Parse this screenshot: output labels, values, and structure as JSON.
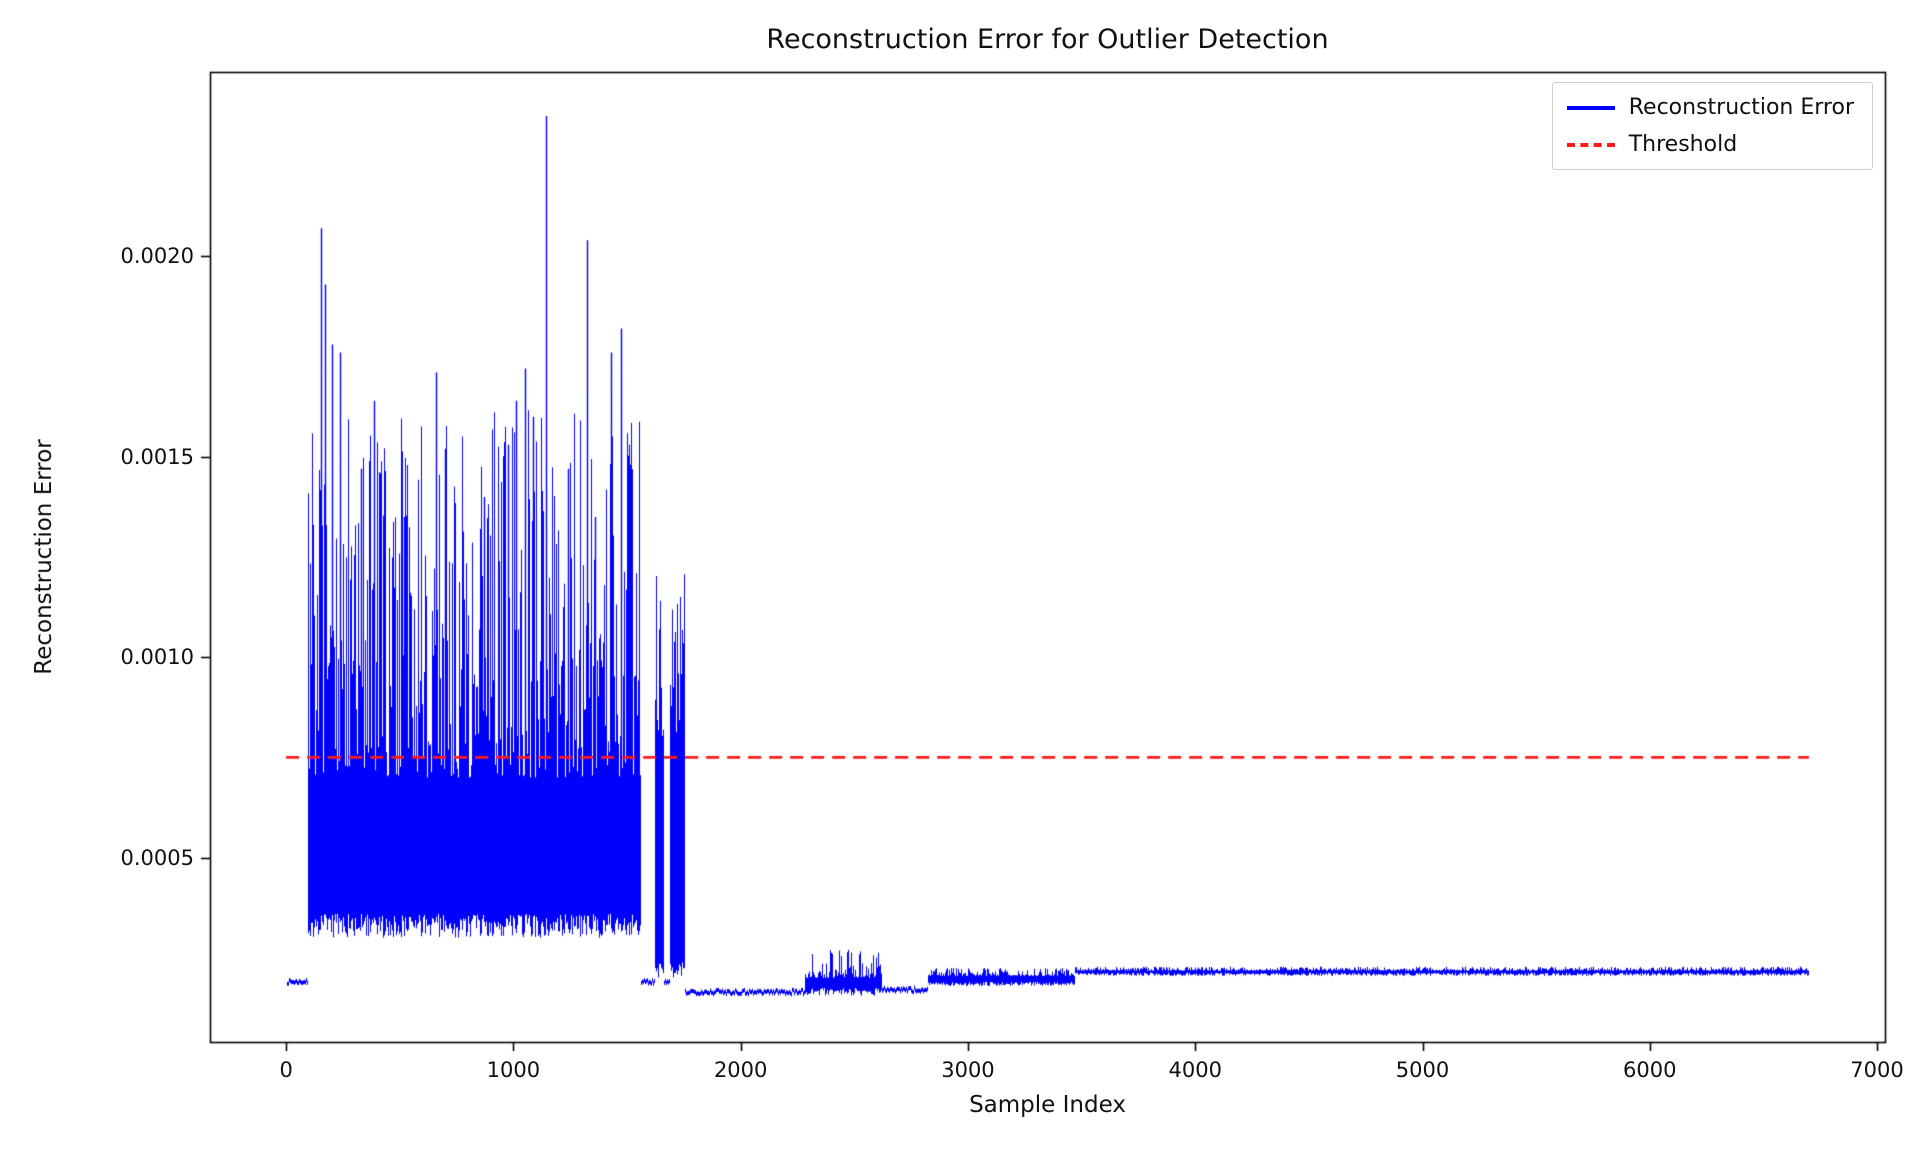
{
  "figure": {
    "title": "Reconstruction Error for Outlier Detection",
    "xlabel": "Sample Index",
    "ylabel": "Reconstruction Error"
  },
  "legend": {
    "position": "upper right",
    "entries": [
      {
        "label": "Reconstruction Error",
        "color": "#0000ff",
        "style": "solid"
      },
      {
        "label": "Threshold",
        "color": "#ff1a1a",
        "style": "dashed"
      }
    ]
  },
  "chart_data": {
    "type": "line",
    "title": "Reconstruction Error for Outlier Detection",
    "xlabel": "Sample Index",
    "ylabel": "Reconstruction Error",
    "grid": false,
    "legend_position": "upper right",
    "xlim": [
      -335,
      7035
    ],
    "ylim": [
      4e-05,
      0.00246
    ],
    "x_ticks": [
      {
        "value": 0,
        "label": "0"
      },
      {
        "value": 1000,
        "label": "1000"
      },
      {
        "value": 2000,
        "label": "2000"
      },
      {
        "value": 3000,
        "label": "3000"
      },
      {
        "value": 4000,
        "label": "4000"
      },
      {
        "value": 5000,
        "label": "5000"
      },
      {
        "value": 6000,
        "label": "6000"
      },
      {
        "value": 7000,
        "label": "7000"
      }
    ],
    "y_ticks": [
      {
        "value": 0.0005,
        "label": "0.0005"
      },
      {
        "value": 0.001,
        "label": "0.0010"
      },
      {
        "value": 0.0015,
        "label": "0.0015"
      },
      {
        "value": 0.002,
        "label": "0.0020"
      }
    ],
    "threshold": {
      "label": "Threshold",
      "value": 0.00075,
      "x_start": 0,
      "x_end": 6700,
      "color": "#ff1a1a",
      "style": "dashed"
    },
    "series": [
      {
        "name": "Reconstruction Error",
        "color": "#0000ff",
        "x_start": 0,
        "x_end": 6700,
        "description": "Dense noisy error 0.0003-0.0023 for samples ~100-1550, two short bursts to ~0.0012 near 1630 and 1720, then near-flat ~0.0002 tail out to 6700 with a small step up near 3470.",
        "segments": [
          {
            "x0": 0,
            "x1": 95,
            "mode": "flat",
            "base": 0.00019,
            "jitter": 5e-06,
            "half": 5e-06
          },
          {
            "x0": 95,
            "x1": 1560,
            "mode": "noise",
            "low": 0.0003,
            "low_var": 6e-05,
            "mid": 0.0007,
            "high": 0.00162
          },
          {
            "x0": 1560,
            "x1": 1622,
            "mode": "flat",
            "base": 0.00019,
            "jitter": 5e-06,
            "half": 5e-06
          },
          {
            "x0": 1622,
            "x1": 1662,
            "mode": "noise",
            "low": 0.0002,
            "low_var": 4e-05,
            "mid": 0.0008,
            "high": 0.00125
          },
          {
            "x0": 1662,
            "x1": 1688,
            "mode": "flat",
            "base": 0.00019,
            "jitter": 5e-06,
            "half": 5e-06
          },
          {
            "x0": 1688,
            "x1": 1752,
            "mode": "noise",
            "low": 0.0002,
            "low_var": 4e-05,
            "mid": 0.0008,
            "high": 0.00122
          },
          {
            "x0": 1752,
            "x1": 2280,
            "mode": "flat",
            "base": 0.000165,
            "jitter": 6e-06,
            "half": 5e-06
          },
          {
            "x0": 2280,
            "x1": 2620,
            "mode": "noise",
            "low": 0.000155,
            "low_var": 2e-05,
            "mid": 0.0002,
            "high": 0.00027
          },
          {
            "x0": 2620,
            "x1": 2820,
            "mode": "flat",
            "base": 0.00017,
            "jitter": 6e-06,
            "half": 5e-06
          },
          {
            "x0": 2820,
            "x1": 3470,
            "mode": "noise",
            "low": 0.00018,
            "low_var": 1e-05,
            "mid": 0.000205,
            "high": 0.000225
          },
          {
            "x0": 3470,
            "x1": 6700,
            "mode": "noise",
            "low": 0.000205,
            "low_var": 8e-06,
            "mid": 0.000218,
            "high": 0.000228
          }
        ],
        "peaks": [
          {
            "x": 155,
            "y": 0.00207
          },
          {
            "x": 170,
            "y": 0.00193
          },
          {
            "x": 200,
            "y": 0.00178
          },
          {
            "x": 235,
            "y": 0.00176
          },
          {
            "x": 330,
            "y": 0.00147
          },
          {
            "x": 385,
            "y": 0.00164
          },
          {
            "x": 520,
            "y": 0.00135
          },
          {
            "x": 660,
            "y": 0.00171
          },
          {
            "x": 700,
            "y": 0.00152
          },
          {
            "x": 870,
            "y": 0.0014
          },
          {
            "x": 975,
            "y": 0.00153
          },
          {
            "x": 1010,
            "y": 0.00164
          },
          {
            "x": 1050,
            "y": 0.00172
          },
          {
            "x": 1085,
            "y": 0.0016
          },
          {
            "x": 1145,
            "y": 0.00235
          },
          {
            "x": 1240,
            "y": 0.00147
          },
          {
            "x": 1325,
            "y": 0.00204
          },
          {
            "x": 1360,
            "y": 0.00135
          },
          {
            "x": 1430,
            "y": 0.00176
          },
          {
            "x": 1475,
            "y": 0.00182
          }
        ]
      }
    ]
  }
}
